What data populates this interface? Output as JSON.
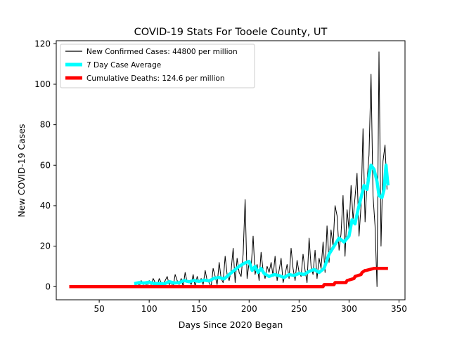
{
  "chart_data": {
    "type": "line",
    "title": "COVID-19 Stats For Tooele County, UT",
    "xlabel": "Days Since 2020 Began",
    "ylabel": "New COVID-19 Cases",
    "xlim": [
      7,
      356
    ],
    "ylim": [
      -6.5,
      121.5
    ],
    "xticks": [
      50,
      100,
      150,
      200,
      250,
      300,
      350
    ],
    "yticks": [
      0,
      20,
      40,
      60,
      80,
      100,
      120
    ],
    "grid": false,
    "legend_position": "top-left",
    "series": [
      {
        "name": "New Confirmed Cases: 44800 per million",
        "color": "#000000",
        "style": "thin-line",
        "x": [
          75,
          78,
          81,
          84,
          86,
          88,
          90,
          92,
          94,
          96,
          98,
          100,
          102,
          104,
          106,
          108,
          110,
          112,
          114,
          116,
          118,
          120,
          122,
          124,
          126,
          128,
          130,
          132,
          134,
          136,
          138,
          140,
          142,
          144,
          146,
          148,
          150,
          152,
          154,
          156,
          158,
          160,
          162,
          164,
          166,
          168,
          170,
          172,
          174,
          176,
          178,
          180,
          182,
          184,
          186,
          188,
          190,
          192,
          194,
          196,
          198,
          200,
          202,
          204,
          206,
          208,
          210,
          212,
          214,
          216,
          218,
          220,
          222,
          224,
          226,
          228,
          230,
          232,
          234,
          236,
          238,
          240,
          242,
          244,
          246,
          248,
          250,
          252,
          254,
          256,
          258,
          260,
          262,
          264,
          266,
          268,
          270,
          272,
          274,
          276,
          278,
          280,
          282,
          284,
          286,
          288,
          290,
          292,
          294,
          296,
          298,
          300,
          302,
          304,
          306,
          308,
          310,
          312,
          314,
          316,
          318,
          320,
          322,
          324,
          326,
          328,
          330,
          332,
          334,
          336,
          338
        ],
        "y": [
          0,
          0,
          0,
          0,
          0,
          2,
          0,
          3,
          1,
          2,
          0,
          3,
          1,
          4,
          2,
          0,
          4,
          2,
          1,
          3,
          5,
          1,
          2,
          0,
          6,
          3,
          1,
          4,
          0,
          7,
          2,
          3,
          1,
          6,
          0,
          5,
          2,
          4,
          1,
          8,
          3,
          2,
          0,
          9,
          5,
          1,
          12,
          4,
          2,
          15,
          6,
          3,
          8,
          19,
          2,
          14,
          7,
          5,
          16,
          43,
          4,
          12,
          9,
          25,
          6,
          11,
          3,
          17,
          8,
          4,
          10,
          7,
          12,
          5,
          15,
          3,
          8,
          14,
          2,
          6,
          11,
          4,
          19,
          9,
          3,
          13,
          7,
          5,
          16,
          8,
          2,
          24,
          10,
          6,
          18,
          4,
          14,
          9,
          22,
          7,
          30,
          12,
          28,
          20,
          40,
          35,
          18,
          26,
          45,
          15,
          38,
          28,
          50,
          33,
          44,
          56,
          25,
          40,
          78,
          32,
          52,
          65,
          105,
          45,
          30,
          0,
          116,
          20,
          62,
          70,
          48
        ],
        "values": [
          0,
          0,
          0,
          0,
          0,
          2,
          0,
          3,
          1,
          2,
          0,
          3,
          1,
          4,
          2,
          0,
          4,
          2,
          1,
          3,
          5,
          1,
          2,
          0,
          6,
          3,
          1,
          4,
          0,
          7,
          2,
          3,
          1,
          6,
          0,
          5,
          2,
          4,
          1,
          8,
          3,
          2,
          0,
          9,
          5,
          1,
          12,
          4,
          2,
          15,
          6,
          3,
          8,
          19,
          2,
          14,
          7,
          5,
          16,
          43,
          4,
          12,
          9,
          25,
          6,
          11,
          3,
          17,
          8,
          4,
          10,
          7,
          12,
          5,
          15,
          3,
          8,
          14,
          2,
          6,
          11,
          4,
          19,
          9,
          3,
          13,
          7,
          5,
          16,
          8,
          2,
          24,
          10,
          6,
          18,
          4,
          14,
          9,
          22,
          7,
          30,
          12,
          28,
          20,
          40,
          35,
          18,
          26,
          45,
          15,
          38,
          28,
          50,
          33,
          44,
          56,
          25,
          40,
          78,
          32,
          52,
          65,
          105,
          45,
          30,
          0,
          116,
          20,
          62,
          70,
          48
        ]
      },
      {
        "name": "7 Day Case Average",
        "color": "#00ffff",
        "style": "thick-line",
        "x": [
          85,
          90,
          95,
          100,
          105,
          110,
          115,
          120,
          125,
          130,
          135,
          140,
          145,
          150,
          155,
          160,
          165,
          170,
          175,
          180,
          185,
          190,
          195,
          200,
          203,
          206,
          209,
          212,
          215,
          220,
          225,
          230,
          235,
          240,
          245,
          250,
          255,
          260,
          265,
          270,
          275,
          280,
          285,
          290,
          295,
          300,
          303,
          306,
          309,
          312,
          315,
          318,
          320,
          322,
          325,
          328,
          330,
          333,
          335,
          337,
          339
        ],
        "y": [
          1.5,
          2,
          1.8,
          2.2,
          1.5,
          1.6,
          1.3,
          2.5,
          1.8,
          2,
          3,
          2.4,
          3,
          2.6,
          3.2,
          2.8,
          4.2,
          4.5,
          3.8,
          6,
          8,
          10,
          11.5,
          12.5,
          8,
          10,
          7,
          9,
          6.5,
          5,
          6,
          5.5,
          4.5,
          6,
          5.5,
          6.5,
          6,
          7.5,
          8.5,
          7,
          9,
          16,
          20,
          24,
          22,
          25,
          33,
          31,
          38,
          44,
          50,
          48,
          55,
          60,
          58,
          52,
          45,
          44,
          48,
          60,
          50
        ],
        "values": [
          1.5,
          2,
          1.8,
          2.2,
          1.5,
          1.6,
          1.3,
          2.5,
          1.8,
          2,
          3,
          2.4,
          3,
          2.6,
          3.2,
          2.8,
          4.2,
          4.5,
          3.8,
          6,
          8,
          10,
          11.5,
          12.5,
          8,
          10,
          7,
          9,
          6.5,
          5,
          6,
          5.5,
          4.5,
          6,
          5.5,
          6.5,
          6,
          7.5,
          8.5,
          7,
          9,
          16,
          20,
          24,
          22,
          25,
          33,
          31,
          38,
          44,
          50,
          48,
          55,
          60,
          58,
          52,
          45,
          44,
          48,
          60,
          50
        ]
      },
      {
        "name": "Cumulative Deaths: 124.6 per million",
        "color": "#ff0000",
        "style": "thick-line",
        "x": [
          20,
          274,
          275,
          285,
          286,
          297,
          298,
          305,
          306,
          312,
          313,
          316,
          317,
          325,
          326,
          339
        ],
        "y": [
          0,
          0,
          1,
          1,
          2,
          2,
          3,
          4,
          5,
          6,
          7,
          8,
          8,
          9,
          9,
          9
        ],
        "values": [
          0,
          0,
          1,
          1,
          2,
          2,
          3,
          4,
          5,
          6,
          7,
          8,
          8,
          9,
          9,
          9
        ]
      }
    ]
  }
}
